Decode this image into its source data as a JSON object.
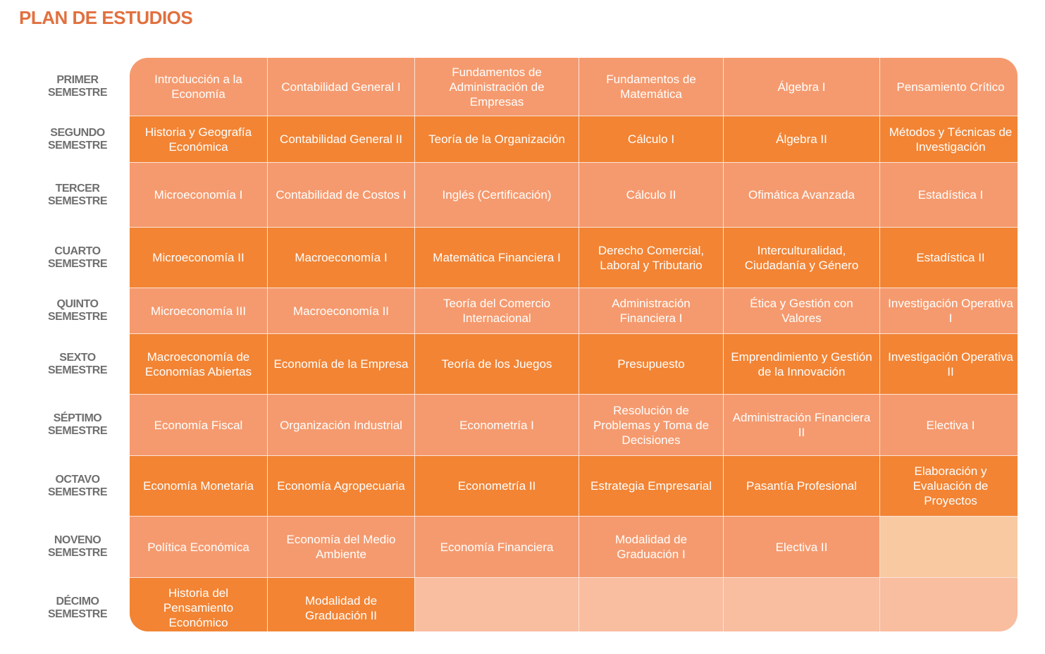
{
  "title": "PLAN DE ESTUDIOS",
  "semesters": [
    {
      "label1": "PRIMER",
      "label2": "SEMESTRE",
      "courses": [
        "Introducción a la Economía",
        "Contabilidad General I",
        "Fundamentos de Administración de Empresas",
        "Fundamentos de Matemática",
        "Álgebra I",
        "Pensamiento Crítico"
      ]
    },
    {
      "label1": "SEGUNDO",
      "label2": "SEMESTRE",
      "courses": [
        "Historia y Geografía Económica",
        "Contabilidad General II",
        "Teoría de la Organización",
        "Cálculo I",
        "Álgebra II",
        "Métodos y Técnicas de Investigación"
      ]
    },
    {
      "label1": "TERCER",
      "label2": "SEMESTRE",
      "courses": [
        "Microeconomía I",
        "Contabilidad de Costos I",
        "Inglés (Certificación)",
        "Cálculo II",
        "Ofimática Avanzada",
        "Estadística I"
      ]
    },
    {
      "label1": "CUARTO",
      "label2": "SEMESTRE",
      "courses": [
        "Microeconomía II",
        "Macroeconomía I",
        "Matemática Financiera I",
        "Derecho Comercial, Laboral y Tributario",
        "Interculturalidad, Ciudadanía y Género",
        "Estadística II"
      ]
    },
    {
      "label1": "QUINTO",
      "label2": "SEMESTRE",
      "courses": [
        "Microeconomía III",
        "Macroeconomía II",
        "Teoría del Comercio Internacional",
        "Administración Financiera I",
        "Ética y Gestión con Valores",
        "Investigación Operativa I"
      ]
    },
    {
      "label1": "SEXTO",
      "label2": "SEMESTRE",
      "courses": [
        "Macroeconomía de Economías Abiertas",
        "Economía de la Empresa",
        "Teoría de los Juegos",
        "Presupuesto",
        "Emprendimiento y Gestión de la Innovación",
        "Investigación Operativa II"
      ]
    },
    {
      "label1": "SÉPTIMO",
      "label2": "SEMESTRE",
      "courses": [
        "Economía Fiscal",
        "Organización Industrial",
        "Econometría I",
        "Resolución de Problemas y Toma de Decisiones",
        "Administración Financiera II",
        "Electiva I"
      ]
    },
    {
      "label1": "OCTAVO",
      "label2": "SEMESTRE",
      "courses": [
        "Economía Monetaria",
        "Economía Agropecuaria",
        "Econometría II",
        "Estrategia Empresarial",
        "Pasantía Profesional",
        "Elaboración y Evaluación de Proyectos"
      ]
    },
    {
      "label1": "NOVENO",
      "label2": "SEMESTRE",
      "courses": [
        "Política Económica",
        "Economía del Medio Ambiente",
        "Economía Financiera",
        "Modalidad de Graduación I",
        "Electiva II",
        ""
      ]
    },
    {
      "label1": "DÉCIMO",
      "label2": "SEMESTRE",
      "courses": [
        "Historia del Pensamiento Económico",
        "Modalidad de Graduación II",
        "",
        "",
        "",
        ""
      ]
    }
  ],
  "colors": {
    "title": "#E1703F",
    "light": "#F59A6E",
    "dark": "#F28434",
    "empty": "#F9BDA0"
  }
}
